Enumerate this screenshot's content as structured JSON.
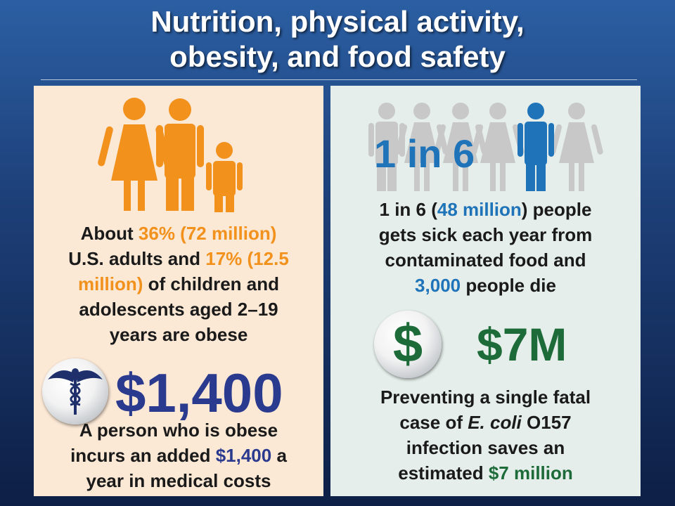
{
  "title": {
    "line1": "Nutrition, physical activity,",
    "line2": "obesity, and food safety"
  },
  "colors": {
    "orange": "#f2911c",
    "blue": "#1e73b9",
    "navy": "#2a3a8f",
    "green": "#1e6b3a",
    "gray_figure": "#c8c8c8"
  },
  "obesity": {
    "icon": "family-icon",
    "line1": {
      "a": "About ",
      "b": "36% (72 million)"
    },
    "line2": {
      "a": "U.S. adults  and ",
      "b": "17% (12.5"
    },
    "line3": {
      "a": "million)",
      "b": " of children and"
    },
    "line4": "adolescents aged 2–19",
    "line5": "years are obese"
  },
  "cost": {
    "icon": "caduceus-icon",
    "value": "$1,400",
    "line1": "A person who is obese",
    "line2": {
      "a": "incurs an added ",
      "b": "$1,400",
      "c": " a"
    },
    "line3": "year in medical costs"
  },
  "food_illness": {
    "icon": "people-row-icon",
    "ratio": "1 in 6",
    "line1": {
      "a": "1 in 6  (",
      "b": "48 million",
      "c": ") people"
    },
    "line2": "gets sick each year from",
    "line3": "contaminated food and",
    "line4": {
      "a": "3,000",
      "b": " people die"
    }
  },
  "savings": {
    "icon": "dollar-icon",
    "value": "$7M",
    "line1": "Preventing a single fatal",
    "line2": {
      "a": "case of ",
      "b": "E. coli",
      "c": " O157"
    },
    "line3": "infection saves an",
    "line4": {
      "a": "estimated ",
      "b": "$7 million"
    }
  }
}
